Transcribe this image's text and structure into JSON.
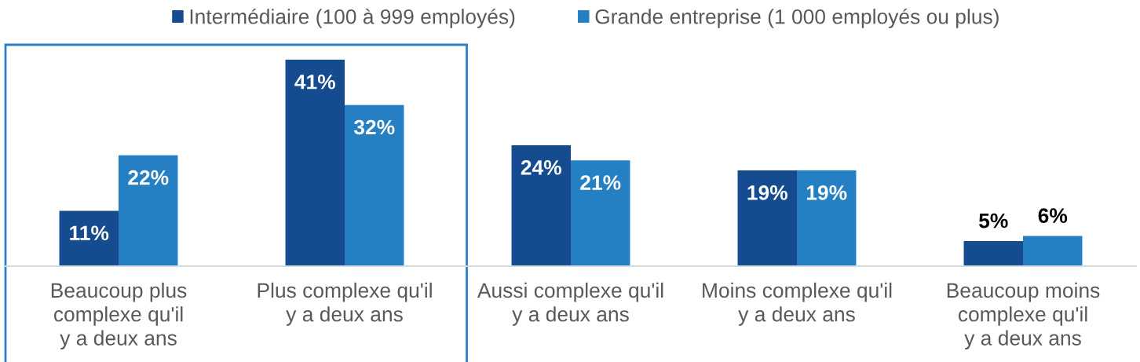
{
  "chart_data": {
    "type": "bar",
    "categories": [
      "Beaucoup plus\ncomplexe qu'il\ny a deux ans",
      "Plus complexe qu'il\ny a deux ans",
      "Aussi complexe qu'il\ny a deux ans",
      "Moins complexe qu'il\ny a deux ans",
      "Beaucoup moins\ncomplexe qu'il\ny a deux ans"
    ],
    "series": [
      {
        "name": "Intermédiaire (100 à 999 employés)",
        "color": "#154c8f",
        "values": [
          11,
          41,
          24,
          19,
          5
        ],
        "value_labels": [
          "11%",
          "41%",
          "24%",
          "19%",
          "5%"
        ]
      },
      {
        "name": "Grande entreprise (1 000 employés ou plus)",
        "color": "#2580c3",
        "values": [
          22,
          32,
          21,
          19,
          6
        ],
        "value_labels": [
          "22%",
          "32%",
          "21%",
          "19%",
          "6%"
        ]
      }
    ],
    "legend": "top",
    "tick_labels": "x"
  }
}
